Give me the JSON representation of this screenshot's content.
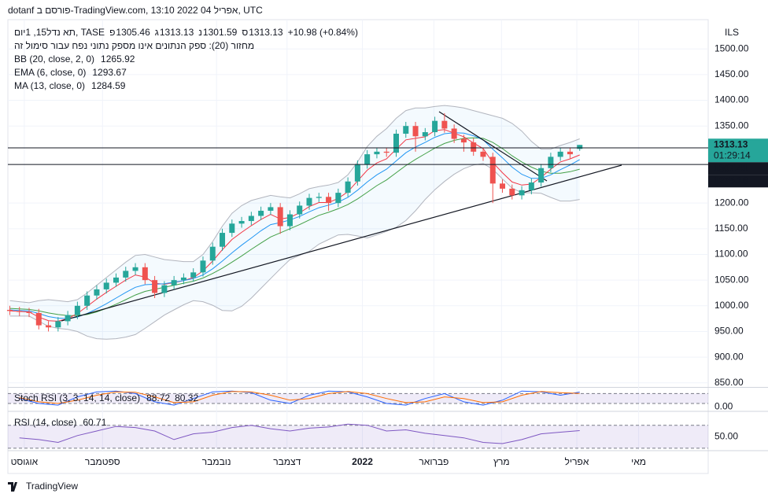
{
  "header": {
    "caption": "dotanf פורסם ב-TradingView.com, 13:10 2022 אפריל 04, UTC"
  },
  "footer": {
    "brand": "TradingView"
  },
  "chart_data": {
    "type": "candlestick",
    "symbol": "תא נדל15, 1יום, TASE",
    "ohlc_prefixes": [
      "פ",
      "ג",
      "נ",
      "ס"
    ],
    "change": "+10.98 (+0.84%)",
    "volume_note": "מחזור (20): ספק הנתונים אינו מספק נתוני נפח עבור סימול זה",
    "currency": "ILS",
    "up_color": "#26a69a",
    "down_color": "#ef5350",
    "open": [
      992,
      990,
      988,
      986,
      962,
      958,
      970,
      982,
      1000,
      1020,
      1032,
      1045,
      1055,
      1068,
      1075,
      1050,
      1025,
      1040,
      1050,
      1055,
      1065,
      1088,
      1115,
      1142,
      1160,
      1165,
      1175,
      1185,
      1192,
      1155,
      1178,
      1195,
      1210,
      1212,
      1200,
      1220,
      1242,
      1275,
      1295,
      1300,
      1298,
      1335,
      1350,
      1330,
      1338,
      1360,
      1345,
      1325,
      1318,
      1300,
      1290,
      1238,
      1228,
      1215,
      1225,
      1240,
      1268,
      1290,
      1300,
      1305.46
    ],
    "high": [
      1000,
      998,
      996,
      994,
      970,
      978,
      990,
      1008,
      1028,
      1040,
      1053,
      1063,
      1076,
      1083,
      1083,
      1058,
      1048,
      1058,
      1063,
      1073,
      1096,
      1123,
      1150,
      1168,
      1173,
      1183,
      1193,
      1200,
      1200,
      1186,
      1203,
      1218,
      1220,
      1220,
      1228,
      1250,
      1283,
      1303,
      1308,
      1308,
      1343,
      1358,
      1358,
      1346,
      1368,
      1375,
      1353,
      1333,
      1326,
      1308,
      1298,
      1246,
      1236,
      1233,
      1248,
      1276,
      1298,
      1308,
      1308,
      1313.13
    ],
    "low": [
      982,
      980,
      978,
      954,
      950,
      950,
      962,
      974,
      992,
      1012,
      1024,
      1037,
      1047,
      1060,
      1042,
      1015,
      1017,
      1032,
      1042,
      1047,
      1057,
      1080,
      1107,
      1134,
      1152,
      1157,
      1167,
      1177,
      1140,
      1147,
      1170,
      1187,
      1202,
      1185,
      1192,
      1212,
      1234,
      1267,
      1287,
      1290,
      1290,
      1327,
      1300,
      1322,
      1330,
      1337,
      1317,
      1300,
      1292,
      1282,
      1200,
      1220,
      1207,
      1207,
      1217,
      1232,
      1260,
      1282,
      1287,
      1301.59
    ],
    "close": [
      990,
      988,
      986,
      962,
      958,
      970,
      982,
      1000,
      1020,
      1032,
      1045,
      1055,
      1068,
      1075,
      1050,
      1025,
      1040,
      1050,
      1055,
      1065,
      1088,
      1115,
      1142,
      1160,
      1165,
      1175,
      1185,
      1192,
      1155,
      1178,
      1195,
      1210,
      1212,
      1200,
      1220,
      1242,
      1275,
      1295,
      1300,
      1298,
      1335,
      1350,
      1330,
      1338,
      1360,
      1345,
      1325,
      1318,
      1300,
      1290,
      1238,
      1228,
      1215,
      1225,
      1240,
      1268,
      1290,
      1300,
      1295,
      1313.13
    ],
    "overlays": [
      {
        "name": "BB (20, close, 2, 0)",
        "color": "#43a047",
        "values": [
          995,
          994,
          993,
          990,
          986,
          983,
          981,
          981,
          983,
          988,
          995,
          1003,
          1012,
          1021,
          1028,
          1032,
          1036,
          1040,
          1044,
          1048,
          1054,
          1063,
          1073,
          1085,
          1097,
          1110,
          1122,
          1134,
          1142,
          1150,
          1158,
          1167,
          1176,
          1182,
          1189,
          1197,
          1208,
          1221,
          1234,
          1245,
          1259,
          1273,
          1285,
          1296,
          1307,
          1316,
          1322,
          1326,
          1327,
          1326,
          1318,
          1306,
          1292,
          1280,
          1270,
          1262,
          1258,
          1258,
          1261,
          1265.92
        ],
        "upper": [
          1010,
          1008,
          1006,
          1010,
          1012,
          1010,
          1008,
          1012,
          1025,
          1040,
          1055,
          1070,
          1085,
          1098,
          1100,
          1095,
          1090,
          1088,
          1086,
          1086,
          1100,
          1125,
          1155,
          1180,
          1195,
          1205,
          1210,
          1215,
          1212,
          1210,
          1218,
          1228,
          1232,
          1235,
          1240,
          1255,
          1280,
          1310,
          1330,
          1345,
          1365,
          1380,
          1385,
          1385,
          1388,
          1390,
          1388,
          1385,
          1380,
          1375,
          1370,
          1365,
          1355,
          1340,
          1320,
          1305,
          1305,
          1312,
          1318,
          1325
        ],
        "lower": [
          980,
          980,
          980,
          970,
          960,
          956,
          954,
          950,
          941,
          936,
          935,
          936,
          939,
          944,
          956,
          969,
          982,
          992,
          1002,
          1010,
          1008,
          1001,
          991,
          990,
          999,
          1015,
          1034,
          1053,
          1072,
          1090,
          1098,
          1106,
          1120,
          1129,
          1138,
          1139,
          1136,
          1132,
          1138,
          1145,
          1153,
          1166,
          1185,
          1207,
          1226,
          1242,
          1256,
          1267,
          1274,
          1277,
          1266,
          1247,
          1229,
          1220,
          1220,
          1219,
          1211,
          1204,
          1204,
          1207
        ],
        "band_color": "#b2b5be"
      },
      {
        "name": "EMA (6, close, 0)",
        "color": "#f23645",
        "values": [
          990,
          989,
          988,
          978,
          971,
          970,
          975,
          985,
          999,
          1013,
          1026,
          1038,
          1050,
          1060,
          1056,
          1044,
          1042,
          1045,
          1049,
          1055,
          1068,
          1087,
          1109,
          1129,
          1143,
          1156,
          1168,
          1178,
          1169,
          1172,
          1181,
          1193,
          1201,
          1201,
          1209,
          1222,
          1243,
          1264,
          1278,
          1286,
          1305,
          1323,
          1326,
          1329,
          1341,
          1343,
          1336,
          1329,
          1317,
          1306,
          1279,
          1259,
          1241,
          1235,
          1237,
          1250,
          1266,
          1280,
          1286,
          1293.67
        ]
      },
      {
        "name": "MA (13, close, 0)",
        "color": "#2196f3",
        "values": [
          992,
          991,
          990,
          985,
          979,
          976,
          975,
          978,
          985,
          994,
          1004,
          1015,
          1026,
          1036,
          1041,
          1042,
          1043,
          1046,
          1049,
          1053,
          1060,
          1072,
          1087,
          1103,
          1118,
          1132,
          1146,
          1158,
          1162,
          1167,
          1174,
          1183,
          1191,
          1196,
          1202,
          1211,
          1225,
          1241,
          1255,
          1266,
          1282,
          1298,
          1309,
          1318,
          1328,
          1335,
          1337,
          1336,
          1331,
          1323,
          1305,
          1288,
          1270,
          1256,
          1248,
          1248,
          1255,
          1265,
          1274,
          1284.59
        ]
      }
    ],
    "xlim": [
      -0.2,
      72.3
    ],
    "xticks": [
      {
        "value": 1.5,
        "label": "אוגוסט"
      },
      {
        "value": 9.6,
        "label": "ספטמבר"
      },
      {
        "value": 21.4,
        "label": "נובמבר"
      },
      {
        "value": 28.7,
        "label": "דצמבר"
      },
      {
        "value": 36.5,
        "label": "2022"
      },
      {
        "value": 43.9,
        "label": "פברואר"
      },
      {
        "value": 50.9,
        "label": "מרץ"
      },
      {
        "value": 58.7,
        "label": "אפריל"
      },
      {
        "value": 65.1,
        "label": "מאי"
      }
    ],
    "ylim": [
      842,
      1557
    ],
    "yticks": [
      {
        "value": 850,
        "label": "850.00"
      },
      {
        "value": 900,
        "label": "900.00"
      },
      {
        "value": 950,
        "label": "950.00"
      },
      {
        "value": 1000,
        "label": "1000.00"
      },
      {
        "value": 1050,
        "label": "1050.00"
      },
      {
        "value": 1100,
        "label": "1100.00"
      },
      {
        "value": 1150,
        "label": "1150.00"
      },
      {
        "value": 1200,
        "label": "1200.00"
      },
      {
        "value": 1350,
        "label": "1350.00"
      },
      {
        "value": 1400,
        "label": "1400.00"
      },
      {
        "value": 1450,
        "label": "1450.00"
      },
      {
        "value": 1500,
        "label": "1500.00"
      }
    ],
    "price_labels": [
      {
        "value": 1313.13,
        "time": "01:29:14",
        "color": "#26a69a"
      },
      {
        "value": 1307.41,
        "color": "#131722",
        "line": true
      },
      {
        "value": 1275.18,
        "color": "#131722",
        "line": true
      }
    ],
    "panes": [
      {
        "name": "Stoch RSI (3, 3, 14, 14, close)",
        "ylim": [
          -23,
          115
        ],
        "yticks": [
          {
            "value": 0,
            "label": "0.00"
          }
        ],
        "bands": [
          20,
          80
        ],
        "series": [
          {
            "color": "#2962ff",
            "values": [
              50,
              20,
              10,
              60,
              90,
              95,
              80,
              30,
              10,
              50,
              90,
              95,
              85,
              40,
              20,
              70,
              95,
              90,
              60,
              20,
              10,
              50,
              80,
              30,
              10,
              40,
              95,
              90,
              70,
              88.72
            ]
          },
          {
            "color": "#ff6d00",
            "values": [
              55,
              30,
              20,
              40,
              70,
              90,
              88,
              60,
              25,
              30,
              70,
              92,
              90,
              70,
              40,
              50,
              80,
              92,
              80,
              50,
              25,
              30,
              60,
              50,
              25,
              30,
              70,
              92,
              85,
              80.32
            ]
          }
        ]
      },
      {
        "name": "RSI (14, close)",
        "ylim": [
          27,
          93
        ],
        "yticks": [
          {
            "value": 50,
            "label": "50.00"
          }
        ],
        "bands": [
          30,
          70
        ],
        "series": [
          {
            "color": "#7e57c2",
            "values": [
              48,
              45,
              40,
              52,
              60,
              68,
              66,
              60,
              45,
              55,
              58,
              66,
              70,
              64,
              60,
              65,
              67,
              72,
              70,
              60,
              62,
              56,
              52,
              48,
              40,
              38,
              45,
              55,
              58,
              60.71
            ]
          }
        ]
      }
    ]
  }
}
